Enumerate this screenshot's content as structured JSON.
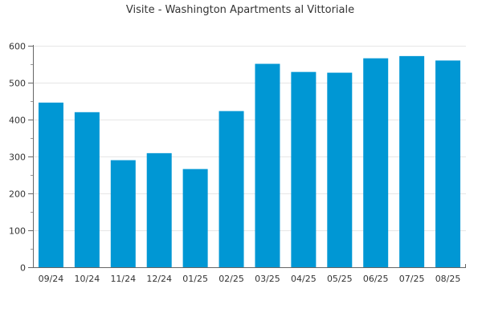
{
  "chart_data": {
    "type": "bar",
    "title": "Visite - Washington Apartments al Vittoriale",
    "xlabel": "",
    "ylabel": "",
    "categories": [
      "09/24",
      "10/24",
      "11/24",
      "12/24",
      "01/25",
      "02/25",
      "03/25",
      "04/25",
      "05/25",
      "06/25",
      "07/25",
      "08/25"
    ],
    "values": [
      446,
      420,
      290,
      309,
      266,
      423,
      551,
      529,
      527,
      566,
      572,
      560
    ],
    "ylim": [
      0,
      600
    ],
    "yticks": [
      0,
      100,
      200,
      300,
      400,
      500,
      600
    ],
    "grid": true,
    "legend": "none",
    "colors": {
      "bar": "#0097d4",
      "grid": "#e6e6e6",
      "axis": "#666666",
      "text": "#333333"
    }
  }
}
